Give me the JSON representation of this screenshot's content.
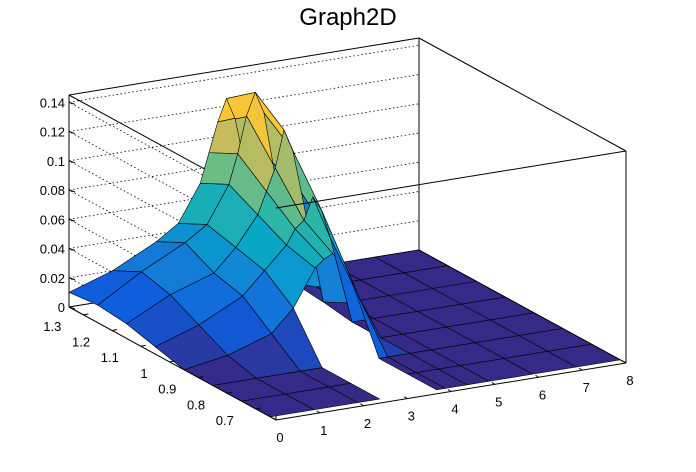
{
  "chart_data": {
    "type": "surface3d",
    "title": "Graph2D",
    "xlabel": "",
    "ylabel": "",
    "zlabel": "",
    "x_ticks": [
      "0",
      "1",
      "2",
      "3",
      "4",
      "5",
      "6",
      "7",
      "8"
    ],
    "y_ticks": [
      "0.7",
      "0.8",
      "0.9",
      "1",
      "1.1",
      "1.2",
      "1.3"
    ],
    "z_ticks": [
      "0",
      "0.02",
      "0.04",
      "0.06",
      "0.08",
      "0.1",
      "0.12",
      "0.14"
    ],
    "xlim": [
      0,
      8
    ],
    "ylim": [
      0.63,
      1.35
    ],
    "zlim": [
      0,
      0.145
    ],
    "grid": true,
    "colormap": [
      "#352a87",
      "#0f5cdd",
      "#1481d6",
      "#06a4ca",
      "#2eb7a4",
      "#87bf77",
      "#d1bb59",
      "#fec832",
      "#f9fb0e"
    ],
    "y_grid": [
      0.65,
      0.75,
      0.85,
      0.95,
      1.05,
      1.15,
      1.25,
      1.35
    ],
    "x_grid": [
      0,
      1,
      2,
      2.5,
      3,
      3.2,
      3.4,
      3.6,
      3.8,
      4,
      4.5,
      5,
      6,
      7,
      8
    ],
    "z_values": [
      [
        0.0,
        0.0,
        0.0,
        0.0,
        null,
        null,
        null,
        null,
        0.0,
        0.0,
        0.0,
        0.0,
        0.0,
        0.0,
        0.0
      ],
      [
        0.0,
        0.0,
        0.0,
        0.0,
        null,
        null,
        null,
        null,
        0.0,
        0.0,
        0.0,
        0.0,
        0.0,
        0.0,
        0.0
      ],
      [
        0.0,
        0.0,
        0.0,
        0.0,
        null,
        null,
        null,
        null,
        0.0,
        0.0,
        0.0,
        0.0,
        0.0,
        0.0,
        0.0
      ],
      [
        0.0,
        0.005,
        0.015,
        0.03,
        0.055,
        0.06,
        0.063,
        0.055,
        0.045,
        0.03,
        0.0,
        0.0,
        0.0,
        0.0,
        0.0
      ],
      [
        0.005,
        0.015,
        0.03,
        0.045,
        0.06,
        0.07,
        0.075,
        0.09,
        0.08,
        0.06,
        0.0,
        0.0,
        0.0,
        0.0,
        0.0
      ],
      [
        0.01,
        0.025,
        0.035,
        0.05,
        0.07,
        0.085,
        0.1,
        0.125,
        0.11,
        0.08,
        0.003,
        0.0,
        0.0,
        0.0,
        0.0
      ],
      [
        0.012,
        0.03,
        0.045,
        0.055,
        0.08,
        0.1,
        0.125,
        0.14,
        0.125,
        0.09,
        0.005,
        0.0,
        0.0,
        0.0,
        0.0
      ],
      [
        0.01,
        0.02,
        0.035,
        0.045,
        0.07,
        0.09,
        0.11,
        0.125,
        0.11,
        0.08,
        0.003,
        0.0,
        0.0,
        0.0,
        0.0
      ]
    ]
  }
}
